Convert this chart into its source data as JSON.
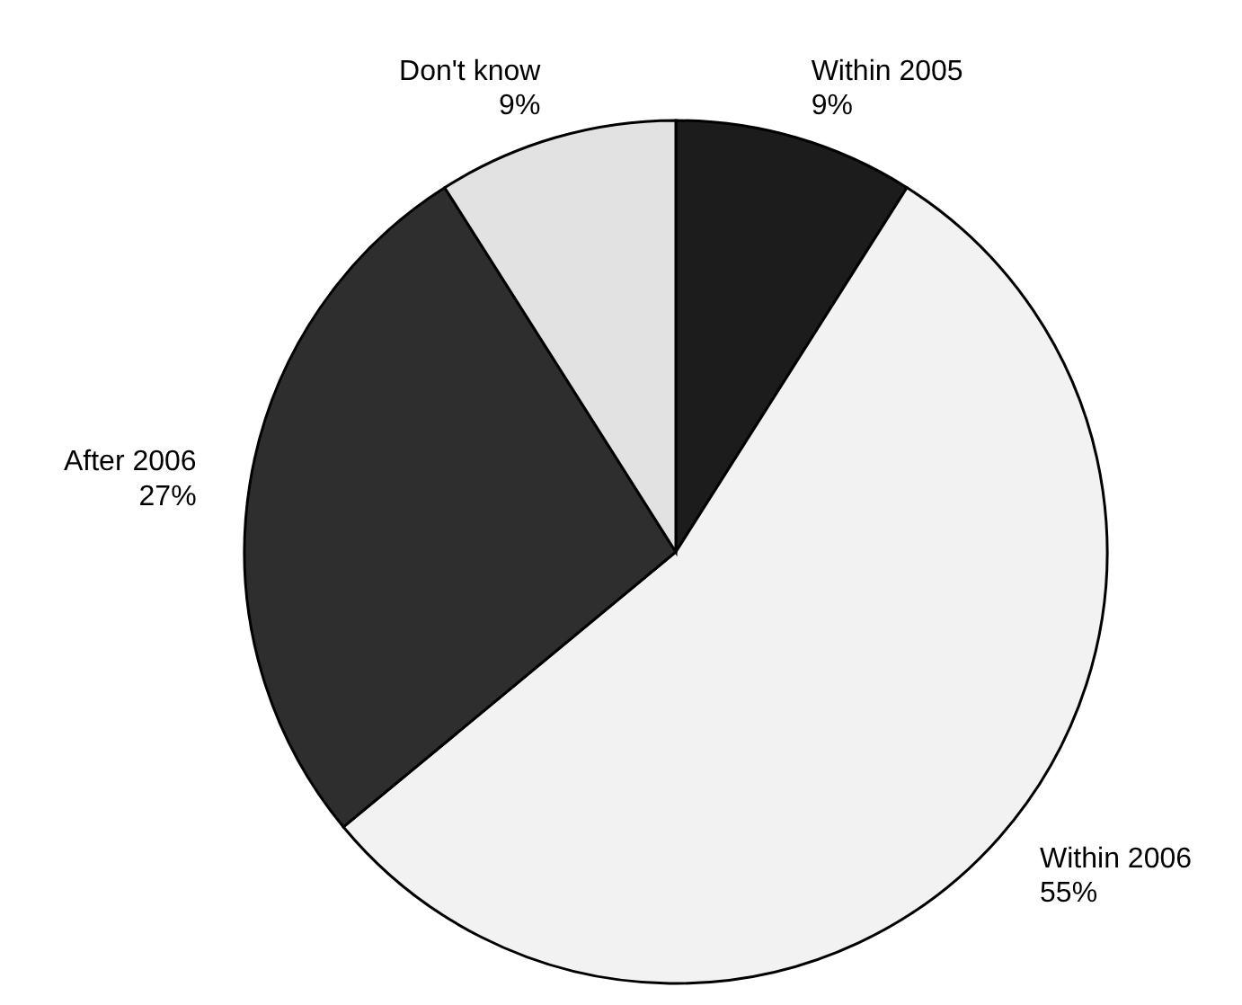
{
  "chart_data": {
    "type": "pie",
    "categories": [
      "Within 2005",
      "Within 2006",
      "After 2006",
      "Don't know"
    ],
    "values": [
      9,
      55,
      27,
      9
    ],
    "colors": [
      "#1c1c1c",
      "#f2f2f2",
      "#2e2e2e",
      "#e2e2e2"
    ],
    "value_labels": [
      "9%",
      "55%",
      "27%",
      "9%"
    ],
    "legend": false
  }
}
